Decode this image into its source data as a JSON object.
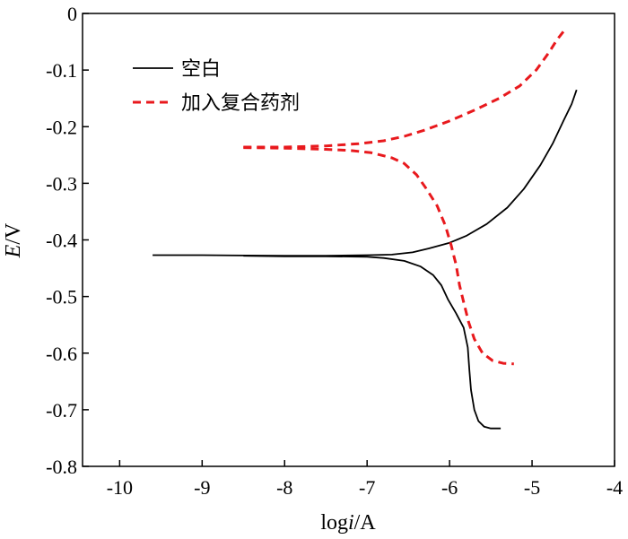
{
  "chart_data": {
    "type": "line",
    "title": "",
    "xlabel": {
      "prefix": "log",
      "italic": "i",
      "suffix": "/A"
    },
    "ylabel": {
      "italic": "E",
      "suffix": "/V"
    },
    "xlim": [
      -10.45,
      -4
    ],
    "ylim": [
      -0.8,
      0
    ],
    "xticks": [
      -10,
      -9,
      -8,
      -7,
      -6,
      -5,
      -4
    ],
    "yticks": [
      0,
      -0.1,
      -0.2,
      -0.3,
      -0.4,
      -0.5,
      -0.6,
      -0.7,
      -0.8
    ],
    "xtick_labels": [
      "-10",
      "-9",
      "-8",
      "-7",
      "-6",
      "-5",
      "-4"
    ],
    "ytick_labels": [
      "0",
      "-0.1",
      "-0.2",
      "-0.3",
      "-0.4",
      "-0.5",
      "-0.6",
      "-0.7",
      "-0.8"
    ],
    "grid": false,
    "legend_position": "top-left",
    "series": [
      {
        "name": "空白",
        "color": "#000000",
        "style": "solid",
        "branches": [
          [
            [
              -9.6,
              -0.427
            ],
            [
              -9.0,
              -0.427
            ],
            [
              -8.0,
              -0.428
            ],
            [
              -7.5,
              -0.428
            ],
            [
              -7.0,
              -0.427
            ],
            [
              -6.7,
              -0.426
            ],
            [
              -6.45,
              -0.422
            ],
            [
              -6.25,
              -0.415
            ],
            [
              -6.0,
              -0.405
            ],
            [
              -5.8,
              -0.393
            ],
            [
              -5.55,
              -0.372
            ],
            [
              -5.3,
              -0.343
            ],
            [
              -5.1,
              -0.31
            ],
            [
              -4.9,
              -0.268
            ],
            [
              -4.75,
              -0.23
            ],
            [
              -4.62,
              -0.19
            ],
            [
              -4.52,
              -0.16
            ],
            [
              -4.46,
              -0.135
            ]
          ],
          [
            [
              -8.5,
              -0.428
            ],
            [
              -8.0,
              -0.429
            ],
            [
              -7.5,
              -0.429
            ],
            [
              -7.0,
              -0.43
            ],
            [
              -6.8,
              -0.432
            ],
            [
              -6.55,
              -0.437
            ],
            [
              -6.35,
              -0.447
            ],
            [
              -6.2,
              -0.462
            ],
            [
              -6.1,
              -0.48
            ],
            [
              -6.02,
              -0.505
            ],
            [
              -5.92,
              -0.53
            ],
            [
              -5.83,
              -0.555
            ],
            [
              -5.78,
              -0.59
            ],
            [
              -5.76,
              -0.63
            ],
            [
              -5.74,
              -0.665
            ],
            [
              -5.7,
              -0.7
            ],
            [
              -5.65,
              -0.72
            ],
            [
              -5.58,
              -0.73
            ],
            [
              -5.5,
              -0.733
            ],
            [
              -5.38,
              -0.733
            ]
          ]
        ]
      },
      {
        "name": "加入复合药剂",
        "color": "#e8191d",
        "style": "dashed",
        "branches": [
          [
            [
              -8.5,
              -0.236
            ],
            [
              -8.0,
              -0.236
            ],
            [
              -7.5,
              -0.234
            ],
            [
              -7.1,
              -0.23
            ],
            [
              -6.8,
              -0.225
            ],
            [
              -6.55,
              -0.217
            ],
            [
              -6.3,
              -0.206
            ],
            [
              -6.0,
              -0.19
            ],
            [
              -5.7,
              -0.171
            ],
            [
              -5.4,
              -0.15
            ],
            [
              -5.15,
              -0.128
            ],
            [
              -4.95,
              -0.1
            ],
            [
              -4.8,
              -0.07
            ],
            [
              -4.7,
              -0.047
            ],
            [
              -4.62,
              -0.032
            ]
          ],
          [
            [
              -8.5,
              -0.237
            ],
            [
              -8.0,
              -0.238
            ],
            [
              -7.5,
              -0.24
            ],
            [
              -7.2,
              -0.242
            ],
            [
              -6.95,
              -0.246
            ],
            [
              -6.7,
              -0.255
            ],
            [
              -6.55,
              -0.265
            ],
            [
              -6.4,
              -0.285
            ],
            [
              -6.28,
              -0.31
            ],
            [
              -6.15,
              -0.34
            ],
            [
              -6.05,
              -0.375
            ],
            [
              -5.98,
              -0.41
            ],
            [
              -5.92,
              -0.445
            ],
            [
              -5.88,
              -0.48
            ],
            [
              -5.83,
              -0.51
            ],
            [
              -5.77,
              -0.545
            ],
            [
              -5.7,
              -0.575
            ],
            [
              -5.6,
              -0.6
            ],
            [
              -5.48,
              -0.613
            ],
            [
              -5.35,
              -0.618
            ],
            [
              -5.22,
              -0.619
            ]
          ]
        ]
      }
    ]
  }
}
